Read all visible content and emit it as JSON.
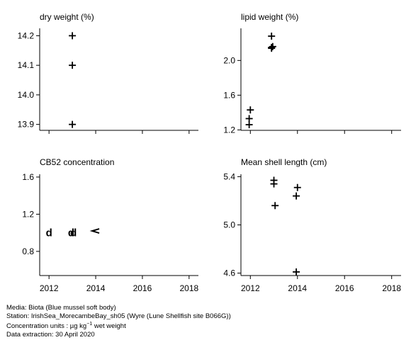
{
  "chart_data": [
    {
      "type": "scatter",
      "title": "dry weight (%)",
      "xlim": [
        2011.6,
        2018.4
      ],
      "xticks": [
        2012,
        2014,
        2016,
        2018
      ],
      "show_x_tick_labels": false,
      "ylim": [
        13.88,
        14.225
      ],
      "yticks": [
        13.9,
        14.0,
        14.1,
        14.2
      ],
      "yticklabels": [
        "13.9",
        "14.0",
        "14.1",
        "14.2"
      ],
      "points": [
        {
          "x": 2013.0,
          "y": 14.2,
          "marker": "+"
        },
        {
          "x": 2013.0,
          "y": 14.1,
          "marker": "+"
        },
        {
          "x": 2013.0,
          "y": 13.9,
          "marker": "+"
        }
      ]
    },
    {
      "type": "scatter",
      "title": "lipid weight (%)",
      "xlim": [
        2011.6,
        2018.4
      ],
      "xticks": [
        2012,
        2014,
        2016,
        2018
      ],
      "show_x_tick_labels": false,
      "ylim": [
        1.195,
        2.37
      ],
      "yticks": [
        1.2,
        1.6,
        2.0
      ],
      "yticklabels": [
        "1.2",
        "1.6",
        "2.0"
      ],
      "points": [
        {
          "x": 2011.95,
          "y": 1.26,
          "marker": "+"
        },
        {
          "x": 2011.95,
          "y": 1.33,
          "marker": "+"
        },
        {
          "x": 2012.0,
          "y": 1.43,
          "marker": "+"
        },
        {
          "x": 2012.9,
          "y": 2.14,
          "marker": "+"
        },
        {
          "x": 2012.9,
          "y": 2.15,
          "marker": "+"
        },
        {
          "x": 2012.95,
          "y": 2.16,
          "marker": "+"
        },
        {
          "x": 2012.9,
          "y": 2.28,
          "marker": "+"
        }
      ]
    },
    {
      "type": "scatter",
      "title": "CB52 concentration",
      "xlim": [
        2011.6,
        2018.4
      ],
      "xticks": [
        2012,
        2014,
        2016,
        2018
      ],
      "xticklabels": [
        "2012",
        "2014",
        "2016",
        "2018"
      ],
      "show_x_tick_labels": true,
      "ylim": [
        0.54,
        1.63
      ],
      "yticks": [
        0.8,
        1.2,
        1.6
      ],
      "yticklabels": [
        "0.8",
        "1.2",
        "1.6"
      ],
      "points": [
        {
          "x": 2012.0,
          "y": 1.0,
          "marker": "d"
        },
        {
          "x": 2012.95,
          "y": 1.0,
          "marker": "d"
        },
        {
          "x": 2013.05,
          "y": 1.0,
          "marker": "d"
        },
        {
          "x": 2014.0,
          "y": 1.02,
          "marker": "<"
        }
      ]
    },
    {
      "type": "scatter",
      "title": "Mean shell length (cm)",
      "xlim": [
        2011.6,
        2018.4
      ],
      "xticks": [
        2012,
        2014,
        2016,
        2018
      ],
      "xticklabels": [
        "2012",
        "2014",
        "2016",
        "2018"
      ],
      "show_x_tick_labels": true,
      "ylim": [
        4.58,
        5.42
      ],
      "yticks": [
        4.6,
        5.0,
        5.4
      ],
      "yticklabels": [
        "4.6",
        "5.0",
        "5.4"
      ],
      "points": [
        {
          "x": 2013.0,
          "y": 5.37,
          "marker": "+"
        },
        {
          "x": 2013.0,
          "y": 5.34,
          "marker": "+"
        },
        {
          "x": 2013.05,
          "y": 5.16,
          "marker": "+"
        },
        {
          "x": 2014.0,
          "y": 5.31,
          "marker": "+"
        },
        {
          "x": 2013.95,
          "y": 5.24,
          "marker": "+"
        },
        {
          "x": 2013.95,
          "y": 4.61,
          "marker": "+"
        }
      ]
    }
  ],
  "footer": {
    "media": "Media: Biota (Blue mussel soft body)",
    "station": "Station: IrishSea_MorecambeBay_sh05 (Wyre (Lune Shellfish site B066G))",
    "units_prefix": "Concentration units : µg kg",
    "units_exponent": "−1",
    "units_suffix": " wet weight",
    "extraction": "Data extraction: 30 April 2020"
  }
}
